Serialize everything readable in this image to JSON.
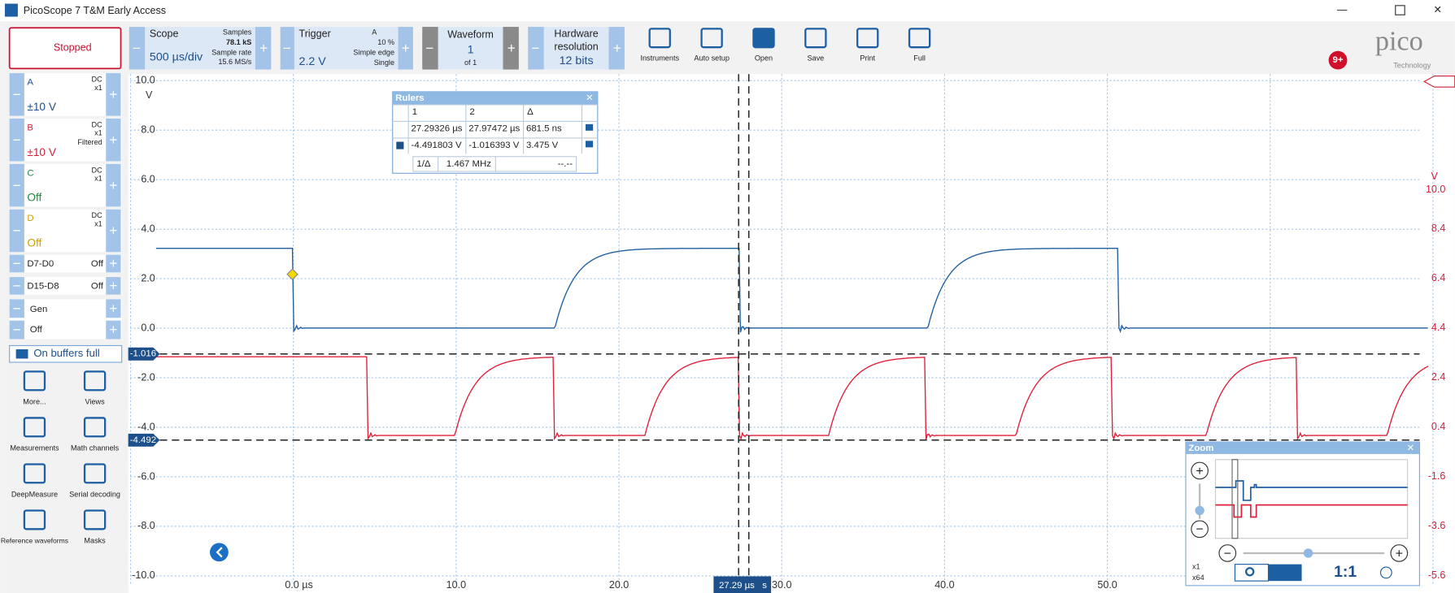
{
  "window": {
    "title": "PicoScope 7 T&M Early Access"
  },
  "toolbar": {
    "status": "Stopped",
    "scope": {
      "label": "Scope",
      "value": "500 µs/div",
      "samples_label": "Samples",
      "samples": "78.1 kS",
      "rate_label": "Sample rate",
      "rate": "15.6 MS/s"
    },
    "trigger": {
      "label": "Trigger",
      "value": "2.2 V",
      "channel": "A",
      "percent": "10 %",
      "mode1": "Simple edge",
      "mode2": "Single"
    },
    "waveform": {
      "label": "Waveform",
      "value": "1",
      "of": "of 1"
    },
    "resolution": {
      "label": [
        "Hardware",
        "resolution"
      ],
      "value": "12 bits"
    },
    "buttons": [
      "Instruments",
      "Auto setup",
      "Open",
      "Save",
      "Print",
      "Full"
    ],
    "notifications": "9+",
    "logo": "pico",
    "logo_sub": "Technology"
  },
  "channels": [
    {
      "name": "A",
      "coupling": "DC",
      "probe": "x1",
      "range": "±10 V",
      "color": "#1d4f8a"
    },
    {
      "name": "B",
      "coupling": "DC",
      "probe": "x1",
      "filter": "Filtered",
      "range": "±10 V",
      "color": "#d0213b"
    },
    {
      "name": "C",
      "coupling": "DC",
      "probe": "x1",
      "range": "Off",
      "color": "#1e8a3c"
    },
    {
      "name": "D",
      "coupling": "DC",
      "probe": "x1",
      "range": "Off",
      "color": "#c9a200"
    }
  ],
  "digital": [
    {
      "name": "D7-D0",
      "state": "Off"
    },
    {
      "name": "D15-D8",
      "state": "Off"
    }
  ],
  "generator": {
    "name": "Gen",
    "state": "Off"
  },
  "capture_mode": "On buffers full",
  "tools": [
    "More...",
    "Views",
    "Measurements",
    "Math channels",
    "DeepMeasure",
    "Serial decoding",
    "Reference waveforms",
    "Masks"
  ],
  "plot": {
    "y_unit": "V",
    "y_labels": [
      "10.0",
      "8.0",
      "6.0",
      "4.0",
      "2.0",
      "0.0",
      "-2.0",
      "-4.0",
      "-6.0",
      "-8.0",
      "-10.0"
    ],
    "y2_unit": "V",
    "y2_labels": [
      "10.0",
      "8.4",
      "6.4",
      "4.4",
      "2.4",
      "0.4",
      "-1.6",
      "-3.6",
      "-5.6"
    ],
    "x_labels": [
      "0.0 µs",
      "10.0",
      "20.0",
      "30.0",
      "40.0",
      "50.0"
    ],
    "ruler_labels": [
      "-1.016",
      "-4.492"
    ],
    "time_ruler": "27.29 µs",
    "time_unit": "s"
  },
  "rulers": {
    "title": "Rulers",
    "header": [
      "1",
      "2",
      "Δ"
    ],
    "rows": [
      [
        "27.29326 µs",
        "27.97472 µs",
        "681.5 ns"
      ],
      [
        "-4.491803 V",
        "-1.016393 V",
        "3.475 V"
      ]
    ],
    "freq_label": "1/Δ",
    "freq": "1.467 MHz",
    "freq2": "--.--"
  },
  "zoom": {
    "title": "Zoom",
    "scale1": "x1",
    "scale2": "x64",
    "ratio": "1:1"
  }
}
